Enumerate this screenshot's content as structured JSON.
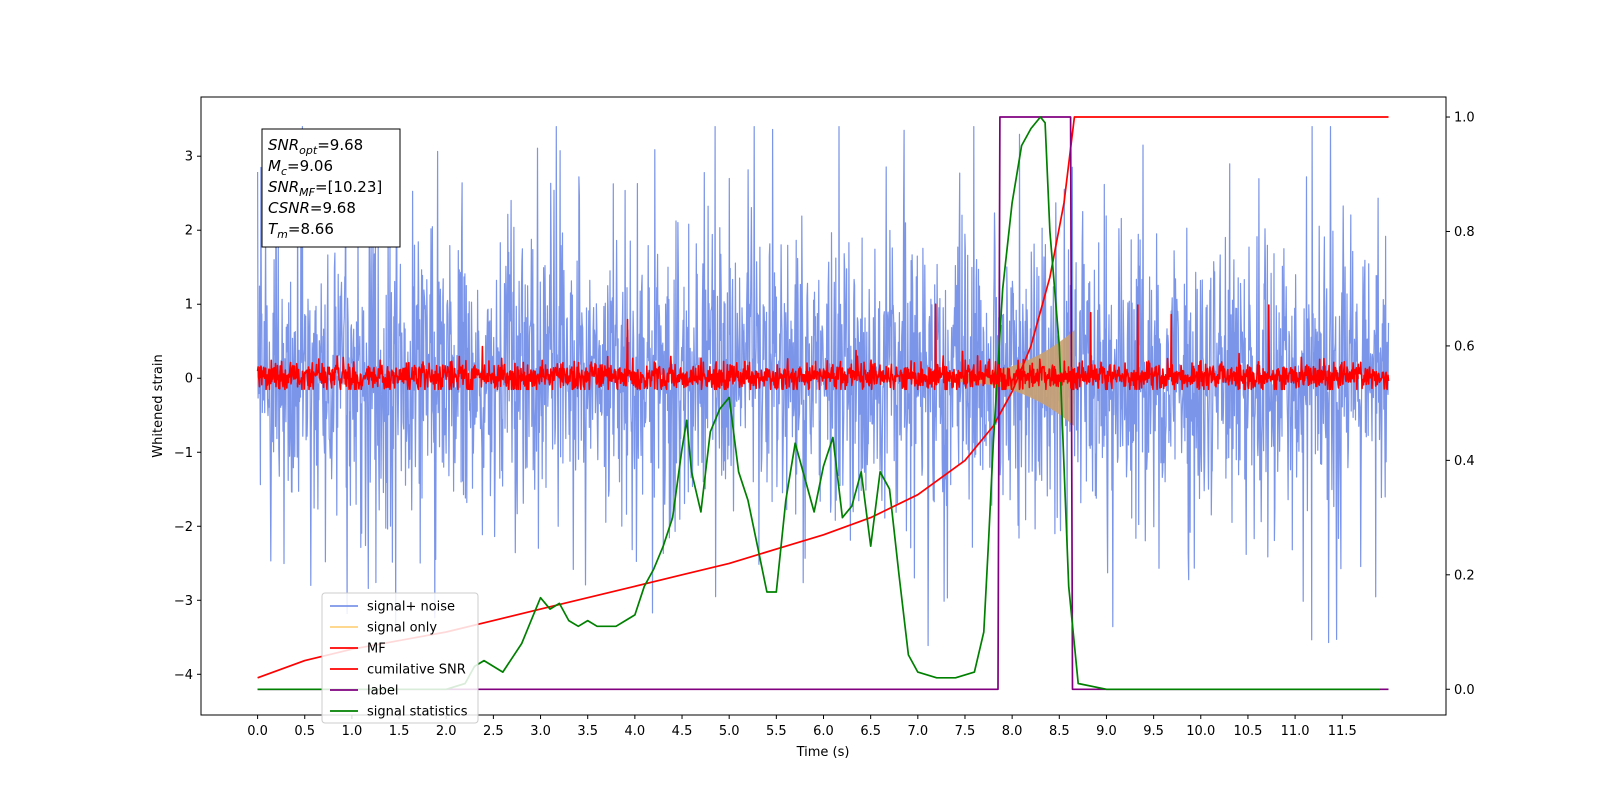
{
  "chart_data": {
    "type": "line",
    "xlabel": "Time (s)",
    "ylabel": "Whitened strain",
    "xlim": [
      -0.6,
      12.6
    ],
    "ylim": [
      -4.55,
      3.8
    ],
    "y2lim": [
      -0.045,
      1.035
    ],
    "xticks": [
      0.0,
      0.5,
      1.0,
      1.5,
      2.0,
      2.5,
      3.0,
      3.5,
      4.0,
      4.5,
      5.0,
      5.5,
      6.0,
      6.5,
      7.0,
      7.5,
      8.0,
      8.5,
      9.0,
      9.5,
      10.0,
      10.5,
      11.0,
      11.5
    ],
    "xtick_labels": [
      "0.0",
      "0.5",
      "1.0",
      "1.5",
      "2.0",
      "2.5",
      "3.0",
      "3.5",
      "4.0",
      "4.5",
      "5.0",
      "5.5",
      "6.0",
      "6.5",
      "7.0",
      "7.5",
      "8.0",
      "8.5",
      "9.0",
      "9.5",
      "10.0",
      "10.5",
      "11.0",
      "11.5"
    ],
    "yticks": [
      3,
      2,
      1,
      0,
      -1,
      -2,
      -3,
      -4
    ],
    "ytick_labels": [
      "3",
      "2",
      "1",
      "0",
      "−1",
      "−2",
      "−3",
      "−4"
    ],
    "y2ticks": [
      1.0,
      0.8,
      0.6,
      0.4,
      0.2,
      0.0
    ],
    "y2tick_labels": [
      "1.0",
      "0.8",
      "0.6",
      "0.4",
      "0.2",
      "0.0"
    ],
    "grid": false,
    "legend_placement": "lower-left",
    "legend": [
      {
        "label": "signal+ noise",
        "color": "#7b95e8"
      },
      {
        "label": "signal only",
        "color": "#ffd27f"
      },
      {
        "label": "MF",
        "color": "#ff0000"
      },
      {
        "label": "cumilative SNR",
        "color": "#ff0000"
      },
      {
        "label": "label",
        "color": "#800080"
      },
      {
        "label": "signal statistics",
        "color": "#008000"
      }
    ],
    "stats_box": [
      {
        "name": "SNR",
        "sub": "opt",
        "value": "=9.68"
      },
      {
        "name": "M",
        "sub": "c",
        "value": "=9.06"
      },
      {
        "name": "SNR",
        "sub": "MF",
        "value": "=[10.23]"
      },
      {
        "name": "CSNR",
        "sub": "",
        "value": "=9.68"
      },
      {
        "name": "T",
        "sub": "m",
        "value": "=8.66"
      }
    ],
    "series": [
      {
        "name": "signal+ noise",
        "axis": "left",
        "color": "#7b95e8",
        "kind": "noise",
        "x_range": [
          0.0,
          11.99
        ],
        "band": [
          -1.2,
          1.3
        ],
        "peak_max": 3.4,
        "peak_min": -4.15
      },
      {
        "name": "signal only",
        "axis": "left",
        "color": "#ffd27f",
        "kind": "chirp-envelope",
        "x_range": [
          7.3,
          8.66
        ],
        "amplitude_start": 0.05,
        "amplitude_end": 0.65
      },
      {
        "name": "MF",
        "axis": "left",
        "color": "#ff0000",
        "kind": "noise",
        "x_range": [
          0.0,
          11.99
        ],
        "band": [
          -0.1,
          0.15
        ],
        "peak_max": 1.0,
        "peak_min": -0.15
      },
      {
        "name": "cumilative SNR",
        "axis": "right",
        "color": "#ff0000",
        "x": [
          0.0,
          0.5,
          1.0,
          1.5,
          2.0,
          2.5,
          3.0,
          3.5,
          4.0,
          4.5,
          5.0,
          5.5,
          6.0,
          6.5,
          7.0,
          7.5,
          7.8,
          8.0,
          8.2,
          8.4,
          8.55,
          8.66,
          11.99
        ],
        "y": [
          0.02,
          0.05,
          0.07,
          0.085,
          0.1,
          0.12,
          0.14,
          0.16,
          0.18,
          0.2,
          0.22,
          0.245,
          0.27,
          0.3,
          0.34,
          0.4,
          0.46,
          0.52,
          0.6,
          0.72,
          0.85,
          1.0,
          1.0
        ]
      },
      {
        "name": "label",
        "axis": "right",
        "color": "#800080",
        "x": [
          0.0,
          7.85,
          7.87,
          8.62,
          8.64,
          11.99
        ],
        "y": [
          0.0,
          0.0,
          1.0,
          1.0,
          0.0,
          0.0
        ]
      },
      {
        "name": "signal statistics",
        "axis": "right",
        "color": "#008000",
        "x": [
          0.0,
          1.0,
          2.0,
          2.2,
          2.3,
          2.4,
          2.5,
          2.6,
          2.8,
          2.9,
          3.0,
          3.1,
          3.2,
          3.3,
          3.4,
          3.5,
          3.6,
          3.8,
          3.9,
          4.0,
          4.1,
          4.2,
          4.3,
          4.4,
          4.5,
          4.55,
          4.6,
          4.7,
          4.8,
          4.9,
          5.0,
          5.1,
          5.2,
          5.3,
          5.4,
          5.5,
          5.6,
          5.7,
          5.8,
          5.9,
          6.0,
          6.1,
          6.2,
          6.3,
          6.4,
          6.5,
          6.6,
          6.7,
          6.8,
          6.9,
          7.0,
          7.2,
          7.4,
          7.6,
          7.7,
          7.75,
          7.8,
          7.9,
          8.0,
          8.1,
          8.2,
          8.3,
          8.35,
          8.4,
          8.5,
          8.6,
          8.7,
          9.0,
          11.9
        ],
        "y": [
          0.0,
          0.0,
          0.0,
          0.01,
          0.04,
          0.05,
          0.04,
          0.03,
          0.08,
          0.12,
          0.16,
          0.14,
          0.15,
          0.12,
          0.11,
          0.12,
          0.11,
          0.11,
          0.12,
          0.13,
          0.18,
          0.21,
          0.25,
          0.3,
          0.42,
          0.47,
          0.38,
          0.31,
          0.45,
          0.49,
          0.51,
          0.38,
          0.33,
          0.25,
          0.17,
          0.17,
          0.33,
          0.43,
          0.37,
          0.31,
          0.39,
          0.44,
          0.3,
          0.32,
          0.38,
          0.25,
          0.38,
          0.35,
          0.2,
          0.06,
          0.03,
          0.02,
          0.02,
          0.03,
          0.1,
          0.26,
          0.43,
          0.7,
          0.85,
          0.95,
          0.98,
          1.0,
          0.99,
          0.8,
          0.6,
          0.18,
          0.01,
          0.0,
          0.0
        ]
      }
    ]
  }
}
